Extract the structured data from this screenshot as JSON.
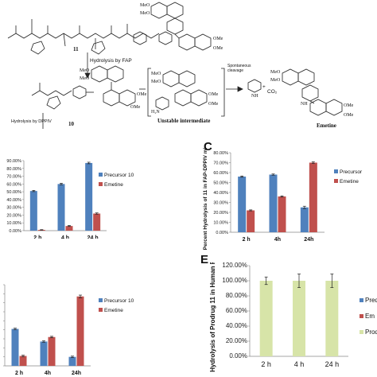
{
  "scheme": {
    "compound_11": "11",
    "step1": "Hydrolysis by FAP",
    "compound_10": "10",
    "intermediate": "Unstable intermediate",
    "step2": "Spontaneous cleavage",
    "co2": "CO₂",
    "plus": "+",
    "emetine": "Emetine",
    "step3": "Hydrolysis by DPPIV",
    "atoms": [
      "MeO",
      "MeO",
      "OMe",
      "OMe",
      "MeO",
      "MeO",
      "OMe",
      "OMe",
      "MeO",
      "MeO",
      "OMe",
      "OMe",
      "MeO",
      "MeO",
      "OMe",
      "OMe",
      "H₂N",
      "NH",
      "NH"
    ]
  },
  "panel_letters": {
    "c": "C",
    "e": "E"
  },
  "chart_data": [
    {
      "id": "top-left",
      "type": "bar",
      "categories": [
        "2 h",
        "4 h",
        "24 h"
      ],
      "series": [
        {
          "name": "Precursor 10",
          "values": [
            51,
            60,
            87
          ],
          "errors": [
            0.8,
            1.0,
            1.0
          ],
          "color": "#4f81bd"
        },
        {
          "name": "Emetine",
          "values": [
            1,
            6,
            22
          ],
          "errors": [
            0.3,
            0.6,
            0.8
          ],
          "color": "#c0504d"
        }
      ],
      "ylim": [
        0,
        90
      ],
      "yticks": [
        "0.00%",
        "10.00%",
        "20.00%",
        "30.00%",
        "40.00%",
        "50.00%",
        "60.00%",
        "70.00%",
        "80.00%",
        "90.00%"
      ],
      "legend": "right",
      "grid": false
    },
    {
      "id": "C",
      "type": "bar",
      "categories": [
        "2 h",
        "4h",
        "24h"
      ],
      "series": [
        {
          "name": "Precursor",
          "values": [
            56,
            58,
            25
          ],
          "errors": [
            0.6,
            0.6,
            1.2
          ],
          "color": "#4f81bd"
        },
        {
          "name": "Emetine",
          "values": [
            22,
            36,
            70
          ],
          "errors": [
            0.5,
            0.6,
            0.8
          ],
          "color": "#c0504d"
        }
      ],
      "ylim": [
        0,
        80
      ],
      "yticks": [
        "0.00%",
        "10.00%",
        "20.00%",
        "30.00%",
        "40.00%",
        "50.00%",
        "60.00%",
        "70.00%",
        "80.00%"
      ],
      "ylabel": "Percent Hydrolysis of 11 in FAP-DPPIV mixture",
      "legend": "right",
      "grid": false
    },
    {
      "id": "bottom-left",
      "type": "bar",
      "categories": [
        "2 h",
        "4h",
        "24h"
      ],
      "series": [
        {
          "name": "Precursor 10",
          "values": [
            41,
            27,
            10
          ],
          "errors": [
            0.8,
            0.8,
            0.8
          ],
          "color": "#4f81bd"
        },
        {
          "name": "Emetine",
          "values": [
            11,
            32,
            77
          ],
          "errors": [
            0.8,
            0.8,
            1.5
          ],
          "color": "#c0504d"
        }
      ],
      "ylim": [
        0,
        90
      ],
      "legend": "right",
      "grid": false
    },
    {
      "id": "E",
      "type": "bar",
      "categories": [
        "2 h",
        "4 h",
        "24 h"
      ],
      "series": [
        {
          "name": "Prodrug 11",
          "values": [
            100,
            100,
            100
          ],
          "errors": [
            5,
            9,
            9
          ],
          "color": "#d7e4a8"
        }
      ],
      "ylim": [
        0,
        120
      ],
      "yticks": [
        "0.00%",
        "20.00%",
        "40.00%",
        "60.00%",
        "80.00%",
        "100.00%",
        "120.00%"
      ],
      "ylabel": "Hydrolysis of Prodrug 11 in Human Plasma",
      "legend_visible": [
        "Pred",
        "Em",
        "Prod"
      ],
      "legend_colors": [
        "#4f81bd",
        "#c0504d",
        "#d7e4a8"
      ],
      "legend": "right",
      "grid": false
    }
  ]
}
